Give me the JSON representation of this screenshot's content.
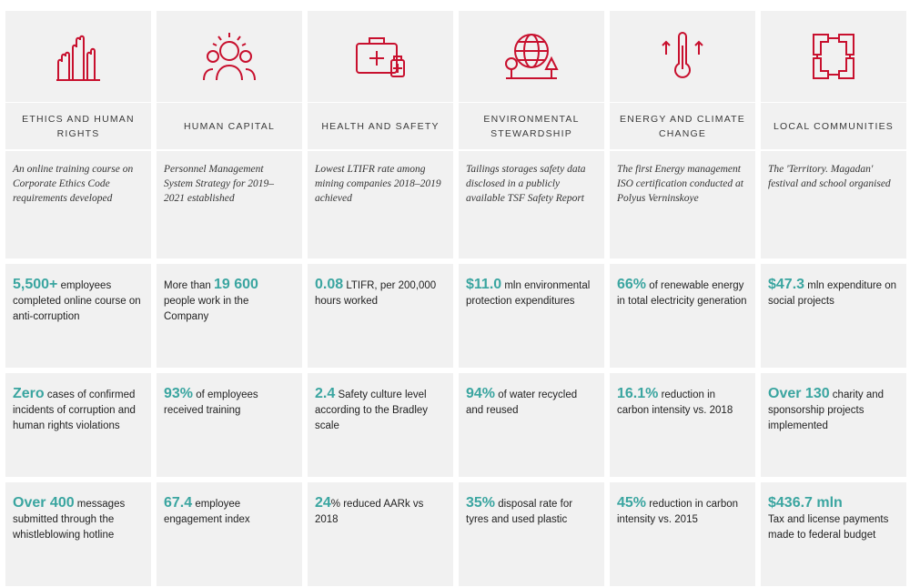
{
  "columns": [
    {
      "icon": "raised-hands-icon",
      "title": "ETHICS AND HUMAN RIGHTS",
      "description": "An online training course on Corporate Ethics Code requirements developed",
      "kpis": [
        {
          "value": "5,500+",
          "text": " employees completed  online course on anti-corruption"
        },
        {
          "value": "Zero",
          "text": " cases of confirmed incidents of corruption and human rights violations"
        },
        {
          "value": "Over 400",
          "text": " messages submitted through the whistleblowing hotline"
        }
      ]
    },
    {
      "icon": "person-group-icon",
      "title": "HUMAN CAPITAL",
      "description": "Personnel Management System Strategy for 2019–2021 established",
      "kpis": [
        {
          "value": "19 600",
          "prefix": "More than ",
          "text": " people work in the Company"
        },
        {
          "value": "93%",
          "text": " of employees received training"
        },
        {
          "value": "67.4",
          "text": " employee engagement index"
        }
      ]
    },
    {
      "icon": "first-aid-kit-icon",
      "title": "HEALTH AND SAFETY",
      "description": "Lowest LTIFR rate among mining companies 2018–2019 achieved",
      "kpis": [
        {
          "value": "0.08",
          "text": " LTIFR, per 200,000 hours worked"
        },
        {
          "value": "2.4",
          "text": " Safety culture level according to the Bradley scale"
        },
        {
          "value": "24",
          "text": "% reduced AARk vs 2018"
        }
      ]
    },
    {
      "icon": "globe-trees-icon",
      "title": "ENVIRONMENTAL STEWARDSHIP",
      "description": "Tailings storages safety data disclosed in a publicly available TSF Safety Report",
      "kpis": [
        {
          "value": "$11.0",
          "text": " mln environmental protection expenditures"
        },
        {
          "value": "94%",
          "text": " of water recycled and reused"
        },
        {
          "value": "35%",
          "text": " disposal rate for tyres and used plastic"
        }
      ]
    },
    {
      "icon": "thermometer-icon",
      "title": "ENERGY AND CLIMATE CHANGE",
      "description": "The first Energy management ISO certification conducted at Polyus Verninskoye",
      "kpis": [
        {
          "value": "66%",
          "text": " of renewable energy in total electricity generation"
        },
        {
          "value": "16.1%",
          "text": " reduction in carbon intensity vs. 2018"
        },
        {
          "value": "45%",
          "text": " reduction in carbon intensity vs. 2015"
        }
      ]
    },
    {
      "icon": "linked-hands-icon",
      "title": "LOCAL COMMUNITIES",
      "description": "The 'Territory. Magadan' festival and school organised",
      "kpis": [
        {
          "value": "$47.3",
          "text": " mln expenditure on social projects"
        },
        {
          "value": "Over 130",
          "text": " charity and sponsorship projects implemented"
        },
        {
          "value": "$436.7 mln",
          "text": "Tax and license payments made to federal budget"
        }
      ]
    }
  ],
  "colors": {
    "accent_red": "#c8102e",
    "teal": "#3aa5a0",
    "cell_bg": "#f1f1f1"
  }
}
